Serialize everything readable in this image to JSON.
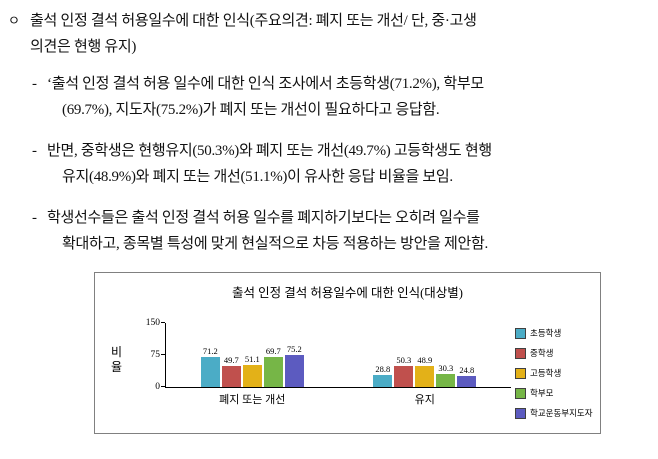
{
  "document": {
    "heading": {
      "marker": "ㅇ",
      "line1": "출석 인정 결석 허용일수에 대한 인식(주요의견: 폐지 또는 개선/ 단, 중·고생",
      "line2": "의견은 현행 유지)"
    },
    "points": [
      {
        "marker": "-",
        "line1": "‘출석 인정 결석 허용 일수에 대한 인식 조사에서 초등학생(71.2%), 학부모",
        "line2": "(69.7%), 지도자(75.2%)가 폐지 또는 개선이 필요하다고 응답함."
      },
      {
        "marker": "-",
        "line1": "반면, 중학생은 현행유지(50.3%)와 폐지 또는 개선(49.7%) 고등학생도 현행",
        "line2": "유지(48.9%)와 폐지 또는 개선(51.1%)이 유사한 응답 비율을 보임."
      },
      {
        "marker": "-",
        "line1": "학생선수들은 출석 인정 결석 허용 일수를 폐지하기보다는 오히려 일수를",
        "line2": "확대하고, 종목별 특성에 맞게 현실적으로 차등 적용하는 방안을 제안함."
      }
    ]
  },
  "chart_data": {
    "type": "bar",
    "title": "출석 인정 결석 허용일수에 대한 인식(대상별)",
    "ylabel": "비율",
    "xlabel": "",
    "ylim": [
      0,
      150
    ],
    "yticks": [
      0,
      75,
      150
    ],
    "grid": false,
    "legend_position": "right",
    "categories": [
      "폐지 또는 개선",
      "유지"
    ],
    "series": [
      {
        "name": "초등학생",
        "color": "#4bacc6",
        "values": [
          71.2,
          28.8
        ]
      },
      {
        "name": "중학생",
        "color": "#c0504d",
        "values": [
          49.7,
          50.3
        ]
      },
      {
        "name": "고등학생",
        "color": "#e3b118",
        "values": [
          51.1,
          48.9
        ]
      },
      {
        "name": "학부모",
        "color": "#76b647",
        "values": [
          69.7,
          30.3
        ]
      },
      {
        "name": "학교운동부지도자",
        "color": "#5c5bc0",
        "values": [
          75.2,
          24.8
        ]
      }
    ]
  }
}
